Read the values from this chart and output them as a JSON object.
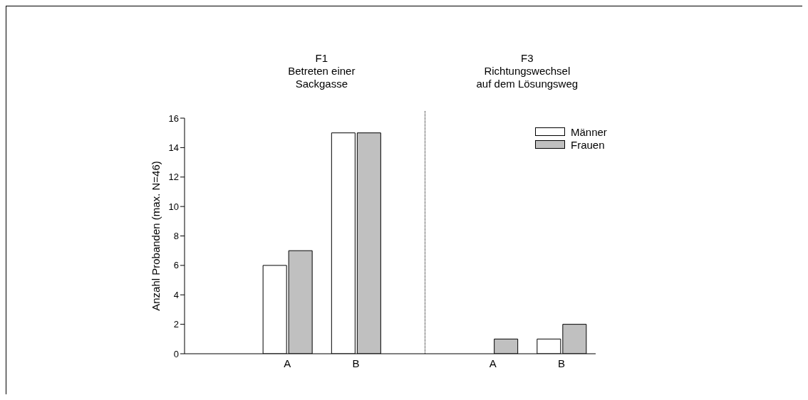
{
  "chart_data": {
    "type": "bar",
    "categories": [
      null,
      "A",
      "B",
      null,
      "A",
      "B"
    ],
    "series": [
      {
        "name": "Männer",
        "color": "#ffffff",
        "values": [
          null,
          6,
          15,
          null,
          0,
          1
        ]
      },
      {
        "name": "Frauen",
        "color": "#c0c0c0",
        "values": [
          null,
          7,
          15,
          null,
          1,
          2
        ]
      }
    ],
    "ylabel": "Anzahl Probanden (max. N=46)",
    "annotations": [
      "F1\nBetreten einer\nSackgasse",
      "F3\nRichtungswechsel\nauf dem Lösungsweg"
    ],
    "ylim": [
      0,
      16
    ],
    "yticks": [
      0,
      2,
      4,
      6,
      8,
      10,
      12,
      14,
      16
    ],
    "legend": "top right"
  }
}
